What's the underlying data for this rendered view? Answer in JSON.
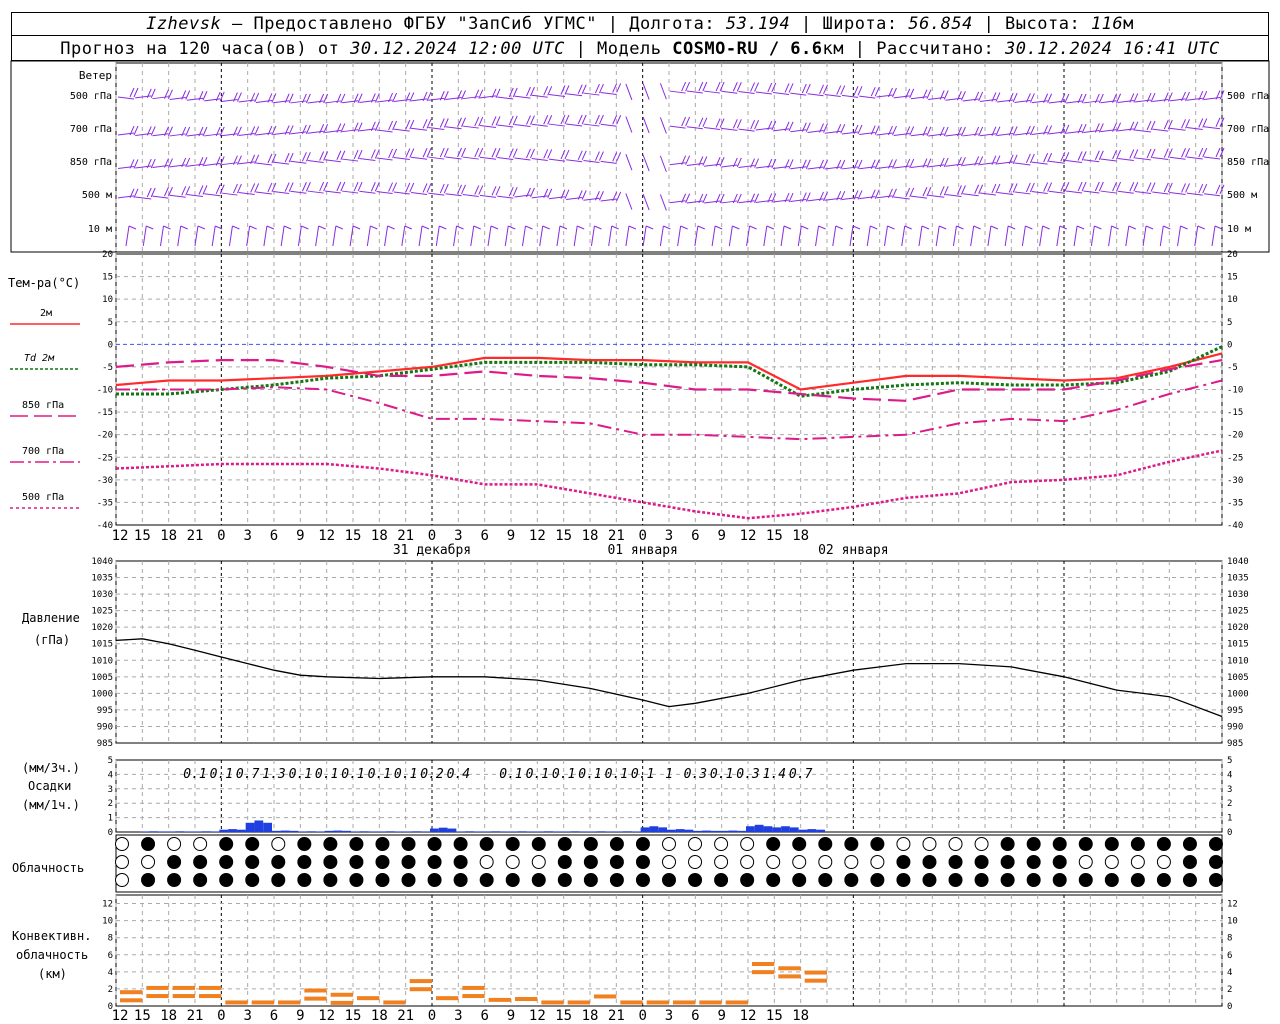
{
  "header": {
    "station": "Izhevsk",
    "provider": "– Предоставлено ФГБУ \"ЗапСиб УГМС\" |",
    "lon_label": "Долгота:",
    "lon": "53.194",
    "lat_label": "| Широта:",
    "lat": "56.854",
    "alt_label": "| Высота:",
    "alt": "116",
    "alt_unit": "м",
    "forecast_label": "Прогноз на 120 часа(ов) от",
    "run_time": "30.12.2024 12:00 UTC",
    "model_label": "| Модель",
    "model": "COSMO-RU / 6.6",
    "model_unit": "км",
    "calc_label": "| Рассчитано:",
    "calc_time": "30.12.2024 16:41 UTC"
  },
  "wind_panel": {
    "title": "Ветер",
    "levels": [
      "500 гПа",
      "700 гПа",
      "850 гПа",
      "500 м",
      "10  м"
    ],
    "barb_color": "#8a2be2"
  },
  "time_axis": {
    "hour_labels": [
      "12",
      "15",
      "18",
      "21",
      "0",
      "3",
      "6",
      "9",
      "12",
      "15",
      "18",
      "21",
      "0",
      "3",
      "6",
      "9",
      "12",
      "15",
      "18",
      "21",
      "0",
      "3",
      "6",
      "9",
      "12",
      "15",
      "18"
    ],
    "date_labels": [
      "31 декабря",
      "01 января",
      "02 января"
    ]
  },
  "temperature_panel": {
    "title": "Тем-ра(°С)",
    "legend": [
      {
        "label": "2м",
        "color": "#ff2a2a"
      },
      {
        "label": "Td  2м",
        "color": "#117711"
      },
      {
        "label": "850 гПа",
        "color": "#dd1a8a"
      },
      {
        "label": "700 гПа",
        "color": "#dd1a8a"
      },
      {
        "label": "500 гПа",
        "color": "#dd1a8a"
      }
    ],
    "ticks": [
      "20",
      "15",
      "10",
      "5",
      "0",
      "-5",
      "-10",
      "-15",
      "-20",
      "-25",
      "-30",
      "-35",
      "-40"
    ]
  },
  "pressure_panel": {
    "title": "Давление",
    "unit": "(гПа)",
    "ticks": [
      "1040",
      "1035",
      "1030",
      "1025",
      "1020",
      "1015",
      "1010",
      "1005",
      "1000",
      "995",
      "990",
      "985"
    ]
  },
  "precip_panel": {
    "unit_top": "(мм/3ч.)",
    "title": "Осадки",
    "unit_bottom": "(мм/1ч.)",
    "ticks": [
      "5",
      "4",
      "3",
      "2",
      "1",
      "0"
    ],
    "totals": [
      "0.1",
      "0.1",
      "0.7",
      "1.3",
      "0.1",
      "0.1",
      "0.1",
      "0.1",
      "0.1",
      "0.2",
      "0.4",
      "0.1",
      "0.1",
      "0.1",
      "0.1",
      "0.1",
      "0.1",
      "1",
      "0.3",
      "0.1",
      "0.3",
      "1.4",
      "0.7"
    ],
    "bar_color": "#1f3fe0"
  },
  "cloud_panel": {
    "title": "Облачность"
  },
  "convective_panel": {
    "title_1": "Конвективн.",
    "title_2": "облачность",
    "unit": "(км)",
    "ticks": [
      "12",
      "10",
      "8",
      "6",
      "4",
      "2",
      "0"
    ],
    "bar_color": "#f08020"
  },
  "chart_data": [
    {
      "type": "line",
      "title": "Тем-ра(°С)",
      "x_unit": "hours from 30.12.2024 12:00 UTC",
      "ylim": [
        -40,
        20
      ],
      "x": [
        0,
        6,
        12,
        18,
        24,
        30,
        36,
        42,
        48,
        54,
        60,
        66,
        72,
        78,
        84,
        90,
        96,
        102,
        108,
        114,
        120,
        126
      ],
      "series": [
        {
          "name": "2м",
          "values": [
            -9,
            -8,
            -8,
            -7.5,
            -7,
            -6,
            -5,
            -3,
            -3,
            -3.5,
            -3.5,
            -4,
            -4,
            -10,
            -8.5,
            -7,
            -7,
            -7.5,
            -8,
            -7.5,
            -5,
            -2
          ]
        },
        {
          "name": "Td  2м",
          "values": [
            -11,
            -11,
            -10,
            -9,
            -7.5,
            -7,
            -5.5,
            -4,
            -4,
            -4,
            -4.5,
            -4.5,
            -5,
            -11.5,
            -10,
            -9,
            -8.5,
            -9,
            -9,
            -8.5,
            -6,
            -0.5
          ]
        },
        {
          "name": "850 гПа",
          "values": [
            -5,
            -4,
            -3.5,
            -3.5,
            -5,
            -7,
            -7,
            -6,
            -7,
            -7.5,
            -8.5,
            -10,
            -10,
            -11,
            -12,
            -12.5,
            -10,
            -10,
            -10,
            -8,
            -5.5,
            -3.5
          ]
        },
        {
          "name": "700 гПа",
          "values": [
            -10,
            -10,
            -10,
            -9.5,
            -10,
            -13,
            -16.5,
            -16.5,
            -17,
            -17.5,
            -20,
            -20,
            -20.5,
            -21,
            -20.5,
            -20,
            -17.5,
            -16.5,
            -17,
            -14.5,
            -11,
            -8
          ]
        },
        {
          "name": "500 гПа",
          "values": [
            -27.5,
            -27,
            -26.5,
            -26.5,
            -26.5,
            -27.5,
            -29,
            -31,
            -31,
            -33,
            -35,
            -37,
            -38.5,
            -37.5,
            -36,
            -34,
            -33,
            -30.5,
            -30,
            -29,
            -26,
            -23.5
          ]
        }
      ]
    },
    {
      "type": "line",
      "title": "Давление",
      "x_unit": "hours from 30.12.2024 12:00 UTC",
      "ylim": [
        985,
        1040
      ],
      "x": [
        0,
        3,
        6,
        9,
        12,
        15,
        18,
        21,
        24,
        30,
        36,
        42,
        48,
        54,
        60,
        63,
        66,
        72,
        78,
        84,
        90,
        96,
        102,
        108,
        114,
        120,
        126
      ],
      "series": [
        {
          "name": "",
          "values": [
            1016,
            1016.5,
            1015,
            1013,
            1011,
            1009,
            1007,
            1005.5,
            1005,
            1004.5,
            1005,
            1005,
            1004,
            1001.5,
            998,
            996,
            997,
            1000,
            1004,
            1007,
            1009,
            1009,
            1008,
            1005,
            1001,
            999,
            993
          ]
        }
      ]
    },
    {
      "type": "bar",
      "title": "Осадки",
      "ylim": [
        0,
        5
      ],
      "categories": [
        "12",
        "15",
        "18",
        "21",
        "0",
        "3",
        "6",
        "9",
        "12",
        "15",
        "18",
        "21",
        "0",
        "3",
        "6",
        "9",
        "12",
        "15",
        "18",
        "21",
        "0",
        "3",
        "6",
        "9",
        "12",
        "15",
        "18"
      ],
      "series": [
        {
          "name": "мм/1ч.",
          "values": [
            0,
            0.05,
            0.05,
            0.05,
            0.2,
            0.8,
            0.1,
            0.05,
            0.1,
            0.05,
            0.05,
            0.05,
            0.3,
            0.05,
            0.05,
            0.05,
            0.05,
            0.05,
            0.05,
            0.05,
            0.4,
            0.2,
            0.1,
            0.1,
            0.5,
            0.4,
            0.2
          ]
        }
      ]
    },
    {
      "type": "bar",
      "title": "Конвективн. облачность",
      "ylim": [
        0,
        13
      ],
      "categories": [
        "12",
        "15",
        "18",
        "21",
        "0",
        "3",
        "6",
        "9",
        "12",
        "15",
        "18",
        "21",
        "0",
        "3",
        "6",
        "9",
        "12",
        "15",
        "18",
        "21",
        "0",
        "3",
        "6",
        "9",
        "12",
        "15",
        "18"
      ],
      "series": [
        {
          "name": "км",
          "values": [
            1.5,
            2,
            2,
            2,
            0.3,
            0.3,
            0.3,
            1.7,
            1.2,
            0.8,
            0.3,
            2.8,
            0.8,
            2,
            0.6,
            0.7,
            0.3,
            0.3,
            1,
            0.3,
            0.3,
            0.3,
            0.3,
            0.3,
            4.8,
            4.3,
            3.8
          ]
        }
      ]
    }
  ]
}
